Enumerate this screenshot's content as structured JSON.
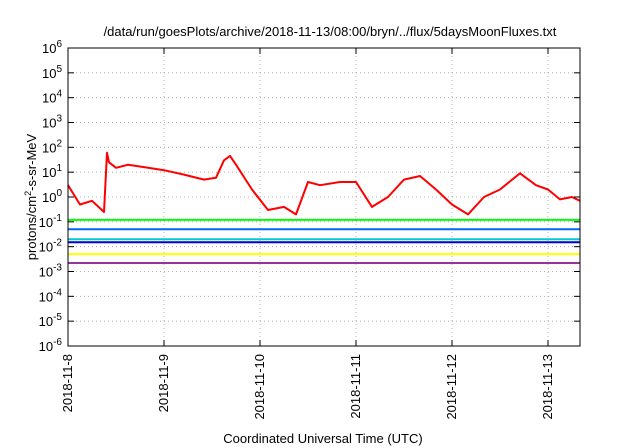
{
  "chart_data": {
    "type": "line",
    "title": "/data/run/goesPlots/archive/2018-11-13/08:00/bryn/../flux/5daysMoonFluxes.txt",
    "xlabel": "Coordinated Universal Time (UTC)",
    "ylabel": {
      "pre": "protons/cm",
      "sup": "2",
      "post": "-s-sr-MeV"
    },
    "y_scale": "log",
    "ylim": [
      1e-06,
      1000000.0
    ],
    "xlim": [
      "2018-11-08T00:00",
      "2018-11-13T08:00"
    ],
    "grid": true,
    "y_ticks": [
      {
        "base": "10",
        "exp": "-6"
      },
      {
        "base": "10",
        "exp": "-5"
      },
      {
        "base": "10",
        "exp": "-4"
      },
      {
        "base": "10",
        "exp": "-3"
      },
      {
        "base": "10",
        "exp": "-2"
      },
      {
        "base": "10",
        "exp": "-1"
      },
      {
        "base": "10",
        "exp": "0"
      },
      {
        "base": "10",
        "exp": "1"
      },
      {
        "base": "10",
        "exp": "2"
      },
      {
        "base": "10",
        "exp": "3"
      },
      {
        "base": "10",
        "exp": "4"
      },
      {
        "base": "10",
        "exp": "5"
      },
      {
        "base": "10",
        "exp": "6"
      }
    ],
    "x_ticks": [
      "2018-11-8",
      "2018-11-9",
      "2018-11-10",
      "2018-11-11",
      "2018-11-12",
      "2018-11-13"
    ],
    "series": [
      {
        "color": "#ff0000",
        "x": [
          "2018-11-08T00:00",
          "2018-11-08T03:00",
          "2018-11-08T06:00",
          "2018-11-08T09:00",
          "2018-11-08T09:45",
          "2018-11-08T10:15",
          "2018-11-08T12:00",
          "2018-11-08T15:00",
          "2018-11-08T19:00",
          "2018-11-09T00:00",
          "2018-11-09T05:00",
          "2018-11-09T10:00",
          "2018-11-09T13:00",
          "2018-11-09T15:00",
          "2018-11-09T16:30",
          "2018-11-09T18:00",
          "2018-11-09T22:00",
          "2018-11-10T02:00",
          "2018-11-10T06:00",
          "2018-11-10T09:00",
          "2018-11-10T12:00",
          "2018-11-10T15:00",
          "2018-11-10T20:00",
          "2018-11-11T00:00",
          "2018-11-11T04:00",
          "2018-11-11T08:00",
          "2018-11-11T12:00",
          "2018-11-11T16:00",
          "2018-11-11T20:00",
          "2018-11-12T00:00",
          "2018-11-12T04:00",
          "2018-11-12T08:00",
          "2018-11-12T12:00",
          "2018-11-12T17:00",
          "2018-11-12T21:00",
          "2018-11-13T00:00",
          "2018-11-13T03:00",
          "2018-11-13T06:00",
          "2018-11-13T08:00"
        ],
        "y": [
          3,
          0.5,
          0.7,
          0.25,
          60,
          25,
          15,
          20,
          16,
          12,
          8,
          5,
          6,
          30,
          45,
          20,
          2,
          0.3,
          0.4,
          0.2,
          4,
          3,
          4,
          4,
          0.4,
          1,
          5,
          7,
          2,
          0.5,
          0.2,
          1,
          2,
          9,
          3,
          2,
          0.8,
          1,
          0.7
        ]
      },
      {
        "color": "#00ff00",
        "x": [
          "2018-11-08T00:00",
          "2018-11-13T08:00"
        ],
        "y": [
          0.12,
          0.12
        ]
      },
      {
        "color": "#0066ff",
        "x": [
          "2018-11-08T00:00",
          "2018-11-13T08:00"
        ],
        "y": [
          0.05,
          0.05
        ]
      },
      {
        "color": "#00cccc",
        "x": [
          "2018-11-08T00:00",
          "2018-11-13T08:00"
        ],
        "y": [
          0.02,
          0.02
        ]
      },
      {
        "color": "#0000cc",
        "x": [
          "2018-11-08T00:00",
          "2018-11-13T08:00"
        ],
        "y": [
          0.015,
          0.015
        ]
      },
      {
        "color": "#ffff00",
        "x": [
          "2018-11-08T00:00",
          "2018-11-13T08:00"
        ],
        "y": [
          0.005,
          0.005
        ]
      },
      {
        "color": "#993399",
        "x": [
          "2018-11-08T00:00",
          "2018-11-13T08:00"
        ],
        "y": [
          0.0022,
          0.0022
        ]
      }
    ]
  }
}
